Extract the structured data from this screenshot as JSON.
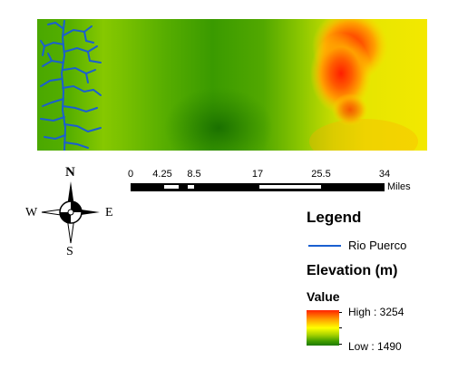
{
  "map": {
    "legend_title": "Legend",
    "river": {
      "label": "Rio Puerco",
      "color": "#1a5fd0"
    },
    "elevation": {
      "title": "Elevation (m)",
      "field": "Value",
      "high_label": "High : 3254",
      "low_label": "Low : 1490",
      "ramp_colors": [
        "#ff2200",
        "#ff9a00",
        "#ffff00",
        "#a6d200",
        "#3f9c00",
        "#1f7a00"
      ]
    },
    "scale_bar": {
      "ticks": [
        "0",
        "4.25",
        "8.5",
        "17",
        "25.5",
        "34"
      ],
      "units": "Miles"
    },
    "compass": {
      "north": "N",
      "south": "S",
      "east": "E",
      "west": "W"
    }
  }
}
